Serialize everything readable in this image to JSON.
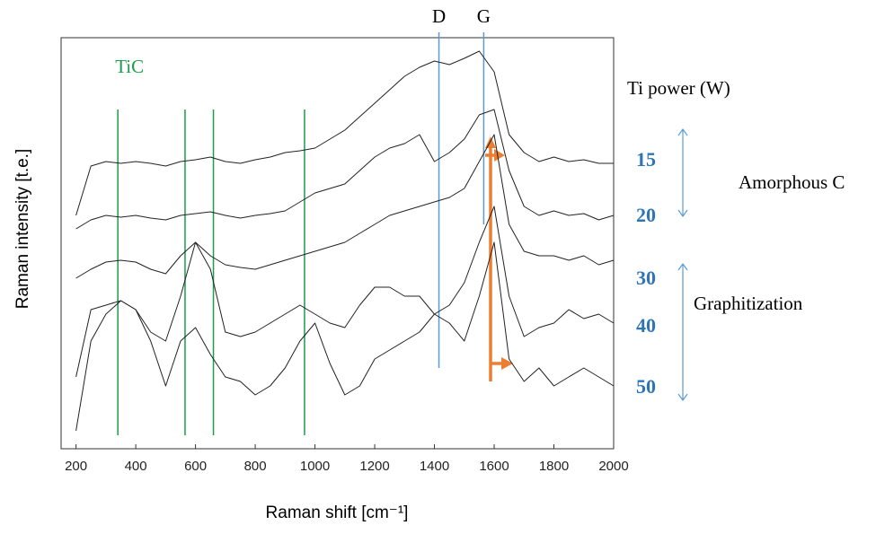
{
  "chart_data": {
    "type": "line",
    "x_label": "Raman shift [cm⁻¹]",
    "y_label": "Raman intensity [t.e.]",
    "xlim": [
      150,
      2000
    ],
    "xticks": [
      200,
      400,
      600,
      800,
      1000,
      1200,
      1400,
      1600,
      1800,
      2000
    ],
    "ylim": [
      0,
      458
    ],
    "legend_title": "Ti power (W)",
    "x": [
      200,
      250,
      300,
      350,
      400,
      450,
      500,
      550,
      600,
      650,
      700,
      750,
      800,
      850,
      900,
      950,
      1000,
      1050,
      1100,
      1150,
      1200,
      1250,
      1300,
      1350,
      1400,
      1450,
      1500,
      1550,
      1600,
      1650,
      1700,
      1750,
      1800,
      1850,
      1900,
      1950,
      2000
    ],
    "series": [
      {
        "name": "15",
        "color": "#222222",
        "values": [
          260,
          315,
          320,
          318,
          320,
          318,
          315,
          320,
          322,
          325,
          320,
          318,
          322,
          325,
          330,
          332,
          335,
          345,
          355,
          370,
          385,
          400,
          415,
          425,
          432,
          428,
          435,
          443,
          420,
          350,
          330,
          320,
          325,
          320,
          322,
          318,
          318
        ]
      },
      {
        "name": "20",
        "color": "#222222",
        "values": [
          245,
          255,
          260,
          258,
          260,
          257,
          255,
          260,
          262,
          264,
          260,
          257,
          260,
          262,
          265,
          275,
          285,
          290,
          295,
          310,
          325,
          335,
          340,
          350,
          320,
          330,
          345,
          372,
          378,
          310,
          270,
          260,
          265,
          260,
          262,
          255,
          260
        ]
      },
      {
        "name": "30",
        "color": "#222222",
        "values": [
          190,
          200,
          208,
          210,
          208,
          200,
          195,
          215,
          230,
          215,
          205,
          202,
          200,
          205,
          210,
          215,
          220,
          225,
          230,
          240,
          250,
          260,
          265,
          270,
          275,
          280,
          290,
          320,
          350,
          250,
          220,
          215,
          215,
          210,
          215,
          205,
          210
        ]
      },
      {
        "name": "40",
        "color": "#222222",
        "values": [
          80,
          155,
          160,
          165,
          155,
          130,
          120,
          170,
          230,
          200,
          130,
          125,
          130,
          140,
          150,
          160,
          150,
          140,
          135,
          160,
          180,
          180,
          170,
          170,
          150,
          160,
          185,
          230,
          270,
          170,
          125,
          135,
          140,
          155,
          145,
          150,
          140
        ]
      },
      {
        "name": "50",
        "color": "#222222",
        "values": [
          20,
          120,
          150,
          165,
          155,
          120,
          70,
          120,
          135,
          105,
          80,
          75,
          60,
          70,
          90,
          120,
          140,
          95,
          60,
          70,
          100,
          110,
          120,
          130,
          150,
          140,
          120,
          170,
          230,
          100,
          75,
          90,
          70,
          80,
          90,
          80,
          70
        ]
      }
    ],
    "tic_label": "TiC",
    "tic_lines": [
      340,
      565,
      660,
      965
    ],
    "tic_color": "#1a9e4a",
    "band_lines": [
      {
        "label": "D",
        "x": 1415
      },
      {
        "label": "G",
        "x": 1565
      }
    ],
    "band_color": "#5b9bd5",
    "legend_color": "#2e75b6",
    "groups": [
      "Amorphous C",
      "Graphitization"
    ]
  }
}
